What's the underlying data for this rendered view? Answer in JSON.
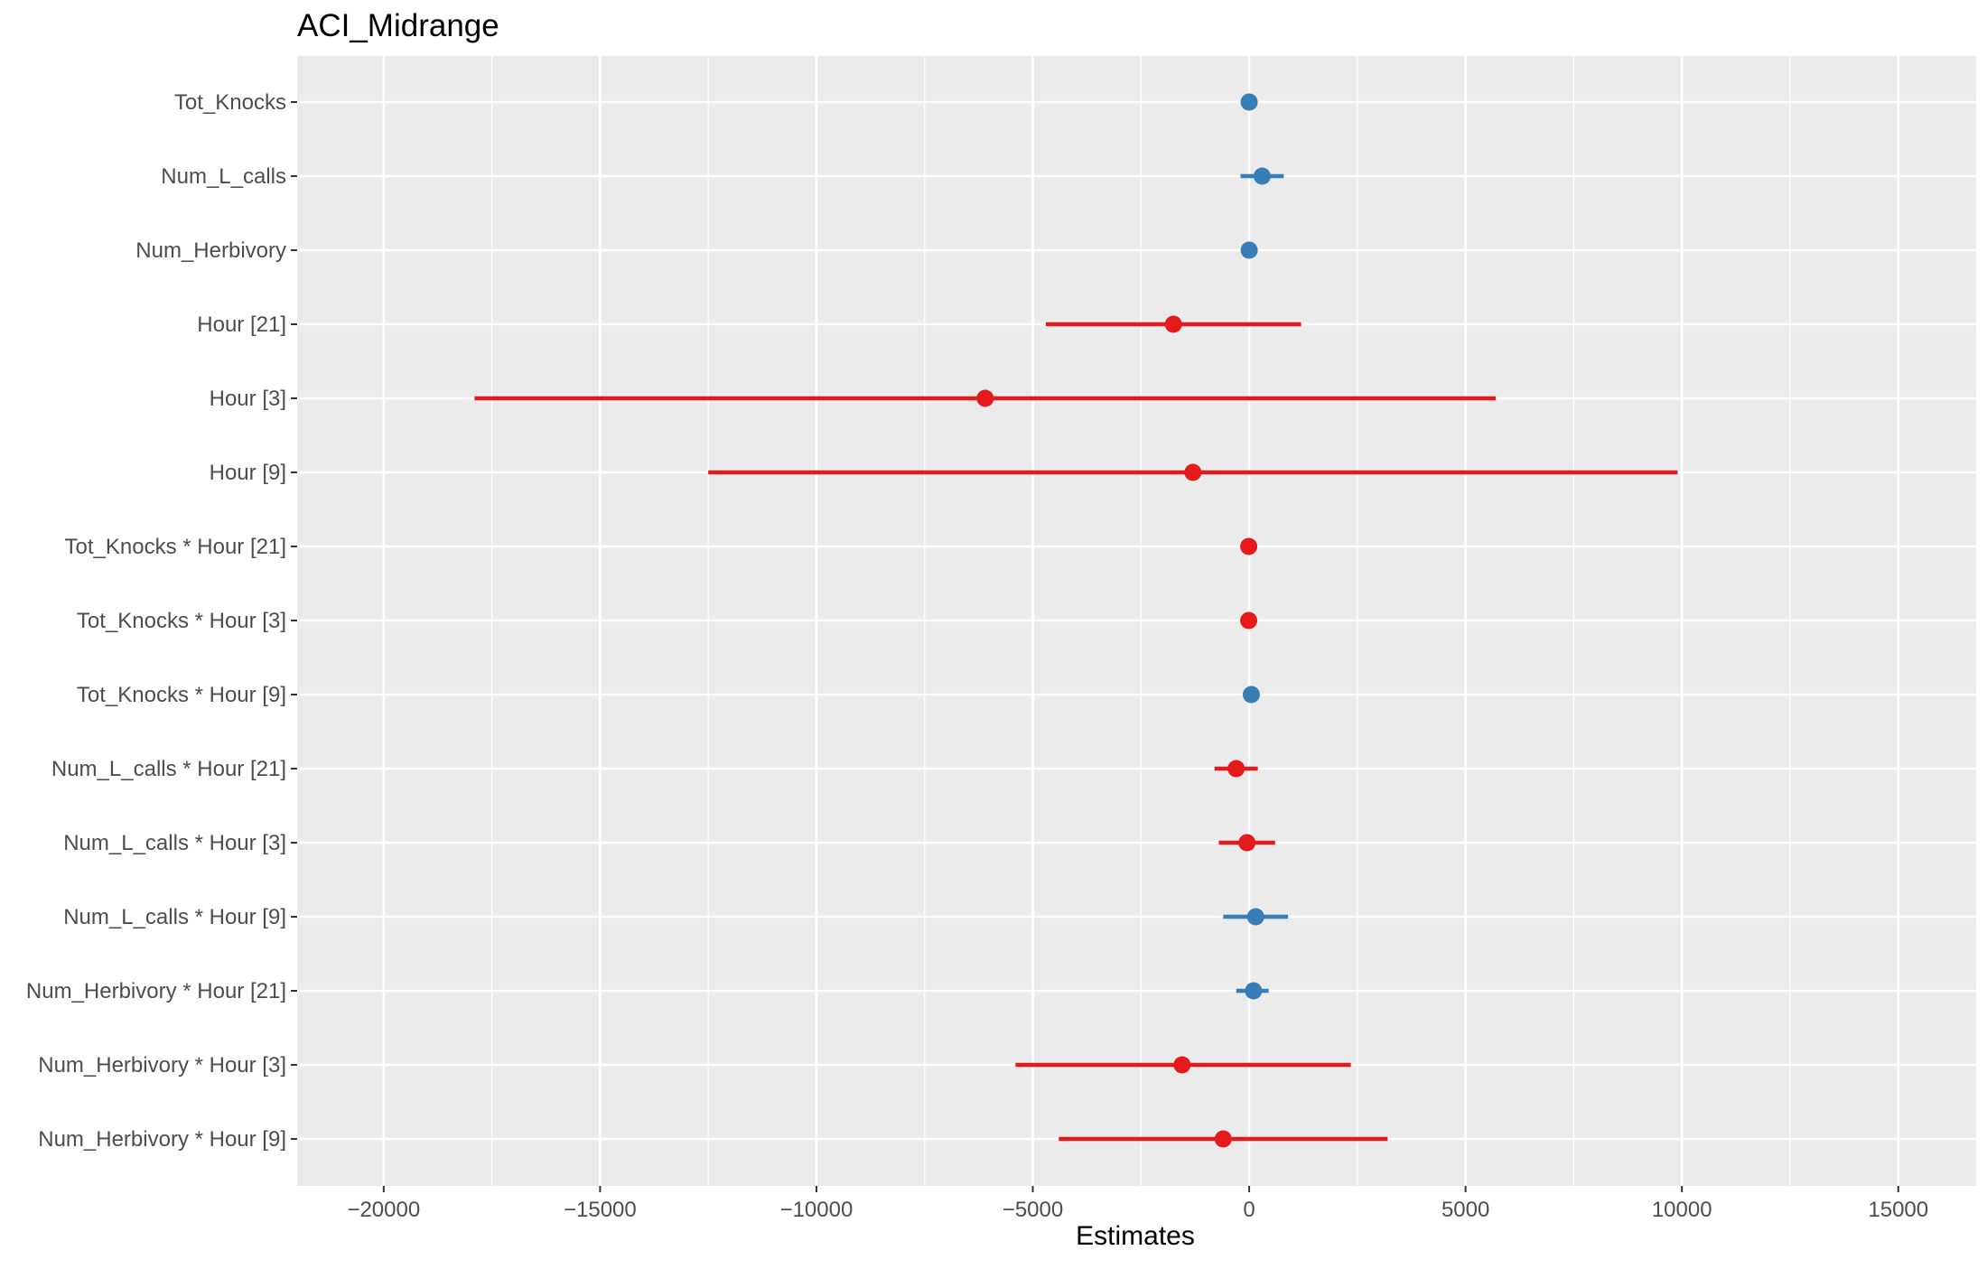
{
  "chart_data": {
    "type": "forest",
    "title": "ACI_Midrange",
    "xlabel": "Estimates",
    "ylabel": "",
    "xlim": [
      -22000,
      16800
    ],
    "x_ticks": [
      -20000,
      -15000,
      -10000,
      -5000,
      0,
      5000,
      10000,
      15000
    ],
    "x_tick_labels": [
      "−20000",
      "−15000",
      "−10000",
      "−5000",
      "0",
      "5000",
      "10000",
      "15000"
    ],
    "grid": true,
    "legend": "none",
    "colors": {
      "positive": "#377eb8",
      "negative": "#e41a1c",
      "panel": "#ebebeb",
      "grid": "#ffffff"
    },
    "terms": [
      {
        "label": "Tot_Knocks",
        "estimate": 0,
        "low": -40,
        "high": 40,
        "color": "positive"
      },
      {
        "label": "Num_L_calls",
        "estimate": 300,
        "low": -200,
        "high": 800,
        "color": "positive"
      },
      {
        "label": "Num_Herbivory",
        "estimate": 0,
        "low": -40,
        "high": 40,
        "color": "positive"
      },
      {
        "label": "Hour [21]",
        "estimate": -1750,
        "low": -4700,
        "high": 1200,
        "color": "negative"
      },
      {
        "label": "Hour [3]",
        "estimate": -6100,
        "low": -17900,
        "high": 5700,
        "color": "negative"
      },
      {
        "label": "Hour [9]",
        "estimate": -1300,
        "low": -12500,
        "high": 9900,
        "color": "negative"
      },
      {
        "label": "Tot_Knocks * Hour [21]",
        "estimate": -10,
        "low": -60,
        "high": 40,
        "color": "negative"
      },
      {
        "label": "Tot_Knocks * Hour [3]",
        "estimate": -10,
        "low": -60,
        "high": 40,
        "color": "negative"
      },
      {
        "label": "Tot_Knocks * Hour [9]",
        "estimate": 50,
        "low": 0,
        "high": 100,
        "color": "positive"
      },
      {
        "label": "Num_L_calls * Hour [21]",
        "estimate": -300,
        "low": -800,
        "high": 200,
        "color": "negative"
      },
      {
        "label": "Num_L_calls * Hour [3]",
        "estimate": -50,
        "low": -700,
        "high": 600,
        "color": "negative"
      },
      {
        "label": "Num_L_calls * Hour [9]",
        "estimate": 150,
        "low": -600,
        "high": 900,
        "color": "positive"
      },
      {
        "label": "Num_Herbivory * Hour [21]",
        "estimate": 100,
        "low": -300,
        "high": 450,
        "color": "positive"
      },
      {
        "label": "Num_Herbivory * Hour [3]",
        "estimate": -1550,
        "low": -5400,
        "high": 2350,
        "color": "negative"
      },
      {
        "label": "Num_Herbivory * Hour [9]",
        "estimate": -600,
        "low": -4400,
        "high": 3200,
        "color": "negative"
      }
    ]
  }
}
